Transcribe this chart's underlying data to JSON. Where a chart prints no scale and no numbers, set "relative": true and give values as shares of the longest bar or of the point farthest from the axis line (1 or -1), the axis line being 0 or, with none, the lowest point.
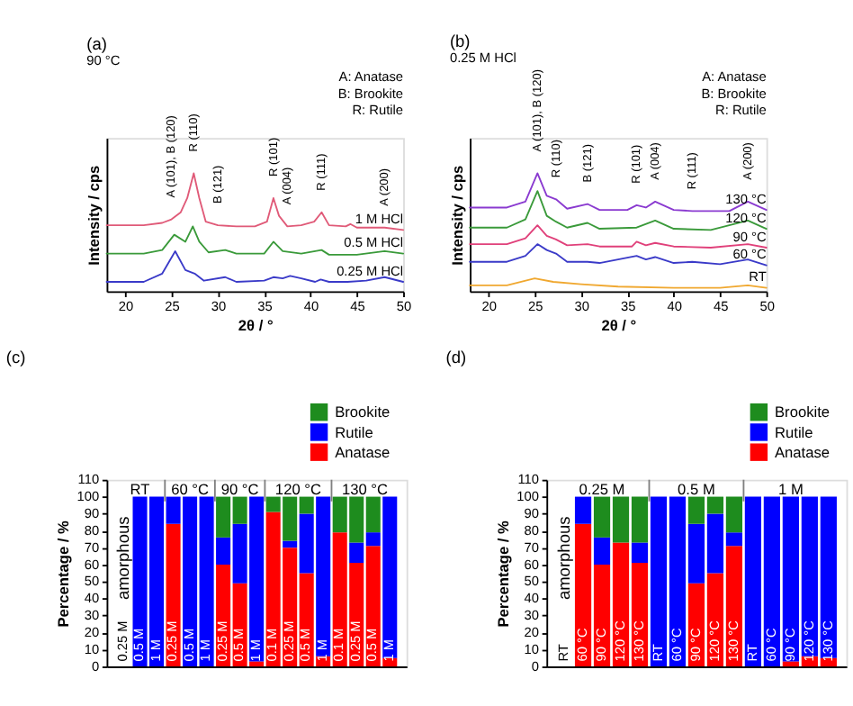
{
  "chart_data": [
    {
      "type": "line",
      "title": "(a)",
      "subtitle": "90 °C",
      "xlabel": "2θ / °",
      "ylabel": "Intensity / cps",
      "relative": true,
      "xlim": [
        18,
        50
      ],
      "xticks": [
        20,
        25,
        30,
        35,
        40,
        45,
        50
      ],
      "tick_labels": "x",
      "series": [
        {
          "name": "1 M HCl",
          "color": "#e05a78",
          "x": [
            18,
            20,
            22,
            24,
            25,
            26,
            26.7,
            27.4,
            28,
            28.7,
            30,
            32,
            34,
            35.3,
            36,
            36.6,
            37.5,
            39,
            40.4,
            41.2,
            42,
            43.8,
            44.3,
            45,
            48,
            50
          ],
          "values": [
            0.56,
            0.56,
            0.56,
            0.58,
            0.61,
            0.67,
            0.79,
            1,
            0.79,
            0.59,
            0.56,
            0.55,
            0.55,
            0.59,
            0.79,
            0.64,
            0.55,
            0.56,
            0.59,
            0.67,
            0.56,
            0.55,
            0.57,
            0.54,
            0.54,
            0.52
          ]
        },
        {
          "name": "0.5 M HCl",
          "color": "#3a9a3a",
          "x": [
            18,
            22,
            24,
            25.3,
            26.5,
            27.3,
            28,
            29,
            30.8,
            32,
            35,
            36,
            37,
            39,
            41.2,
            42,
            45,
            48,
            50
          ],
          "values": [
            0.32,
            0.32,
            0.35,
            0.48,
            0.42,
            0.55,
            0.42,
            0.33,
            0.35,
            0.32,
            0.32,
            0.42,
            0.34,
            0.32,
            0.35,
            0.31,
            0.31,
            0.34,
            0.32
          ]
        },
        {
          "name": "0.25 M HCl",
          "color": "#3a3ac8",
          "x": [
            18,
            20,
            22,
            24,
            25.4,
            26.5,
            27.5,
            28.5,
            30.8,
            32,
            35,
            36,
            37,
            37.8,
            39,
            40.5,
            41.1,
            42,
            44,
            46,
            48,
            50
          ],
          "values": [
            0.08,
            0.08,
            0.08,
            0.15,
            0.34,
            0.18,
            0.15,
            0.09,
            0.12,
            0.08,
            0.09,
            0.12,
            0.11,
            0.13,
            0.11,
            0.08,
            0.1,
            0.08,
            0.08,
            0.09,
            0.12,
            0.08
          ]
        }
      ],
      "annotations": [
        {
          "text": "A (101), B (120)",
          "x": 25,
          "y": 0.61
        },
        {
          "text": "R (110)",
          "x": 27.4,
          "y": 1
        },
        {
          "text": "B (121)",
          "x": 30,
          "y": 0.56
        },
        {
          "text": "R (101)",
          "x": 36,
          "y": 0.79
        },
        {
          "text": "A (004)",
          "x": 37.5,
          "y": 0.55
        },
        {
          "text": "R (111)",
          "x": 41.2,
          "y": 0.67
        },
        {
          "text": "A (200)",
          "x": 48,
          "y": 0.54
        },
        "A: Anatase",
        "B: Brookite",
        "R: Rutile"
      ]
    },
    {
      "type": "line",
      "title": "(b)",
      "subtitle": "0.25 M HCl",
      "xlabel": "2θ / °",
      "ylabel": "Intensity / cps",
      "relative": true,
      "xlim": [
        18,
        50
      ],
      "xticks": [
        20,
        25,
        30,
        35,
        40,
        45,
        50
      ],
      "tick_labels": "x",
      "series": [
        {
          "name": "130 °C",
          "color": "#8a3ad0",
          "x": [
            18,
            22,
            24,
            25.3,
            26.3,
            27.3,
            28.5,
            30.7,
            32,
            35,
            36,
            37,
            38,
            40,
            42,
            46,
            48,
            50
          ],
          "values": [
            0.71,
            0.71,
            0.76,
            1,
            0.81,
            0.78,
            0.7,
            0.74,
            0.69,
            0.69,
            0.73,
            0.71,
            0.76,
            0.69,
            0.68,
            0.68,
            0.76,
            0.69
          ]
        },
        {
          "name": "120 °C",
          "color": "#3a9a3a",
          "x": [
            18,
            22,
            24,
            25.3,
            26.3,
            27.3,
            28.5,
            30.7,
            32,
            36,
            38,
            40,
            44,
            48,
            50
          ],
          "values": [
            0.54,
            0.54,
            0.61,
            0.85,
            0.64,
            0.59,
            0.54,
            0.58,
            0.53,
            0.54,
            0.6,
            0.53,
            0.52,
            0.6,
            0.53
          ]
        },
        {
          "name": "90 °C",
          "color": "#e0407a",
          "x": [
            18,
            22,
            24,
            25.3,
            26.3,
            27.3,
            28.5,
            30.7,
            32,
            35.5,
            36,
            37,
            38,
            40,
            44,
            48,
            50
          ],
          "values": [
            0.4,
            0.4,
            0.45,
            0.56,
            0.47,
            0.44,
            0.39,
            0.4,
            0.38,
            0.38,
            0.42,
            0.39,
            0.41,
            0.38,
            0.37,
            0.4,
            0.37
          ]
        },
        {
          "name": "60 °C",
          "color": "#3a3ac8",
          "x": [
            18,
            22,
            24,
            25.3,
            26.3,
            27.3,
            28.5,
            30.7,
            32,
            36,
            37,
            38,
            40,
            42,
            45,
            48,
            50
          ],
          "values": [
            0.25,
            0.25,
            0.3,
            0.4,
            0.35,
            0.32,
            0.25,
            0.25,
            0.24,
            0.3,
            0.27,
            0.29,
            0.24,
            0.25,
            0.23,
            0.27,
            0.22
          ]
        },
        {
          "name": "RT",
          "color": "#f0a830",
          "x": [
            18,
            22,
            25,
            27,
            30,
            34,
            40,
            45,
            48,
            50
          ],
          "values": [
            0.05,
            0.05,
            0.11,
            0.08,
            0.06,
            0.04,
            0.03,
            0.03,
            0.05,
            0.03
          ]
        }
      ],
      "annotations": [
        {
          "text": "A (101), B (120)",
          "x": 25.3,
          "y": 1
        },
        {
          "text": "R (110)",
          "x": 27.3,
          "y": 0.78
        },
        {
          "text": "B (121)",
          "x": 30.7,
          "y": 0.74
        },
        {
          "text": "R (101)",
          "x": 36,
          "y": 0.73
        },
        {
          "text": "A (004)",
          "x": 38,
          "y": 0.76
        },
        {
          "text": "R (111)",
          "x": 42,
          "y": 0.68
        },
        {
          "text": "A (200)",
          "x": 48,
          "y": 0.76
        },
        "A: Anatase",
        "B: Brookite",
        "R: Rutile"
      ]
    },
    {
      "type": "bar",
      "title": "(c)",
      "ylabel": "Percentage / %",
      "stacked": true,
      "ylim": [
        0,
        110
      ],
      "yticks": [
        0,
        10,
        20,
        30,
        40,
        50,
        60,
        70,
        80,
        90,
        100,
        110
      ],
      "tick_labels": "y",
      "legend": "top right",
      "categories": [
        "0.25 M",
        "0.5 M",
        "1 M",
        "0.25 M",
        "0.5 M",
        "1 M",
        "0.25 M",
        "0.5 M",
        "1 M",
        "0.1 M",
        "0.25 M",
        "0.5 M",
        "1 M",
        "0.1 M",
        "0.25 M",
        "0.5 M",
        "1 M"
      ],
      "series": [
        {
          "name": "Anatase",
          "color": "#ff0000",
          "values": [
            null,
            0,
            0,
            84,
            0,
            0,
            60,
            49,
            3,
            91,
            70,
            55,
            6,
            79,
            61,
            71,
            5
          ]
        },
        {
          "name": "Rutile",
          "color": "#0000ff",
          "values": [
            null,
            100,
            100,
            16,
            100,
            100,
            16,
            35,
            97,
            0,
            4,
            35,
            94,
            0,
            12,
            8,
            95
          ]
        },
        {
          "name": "Brookite",
          "color": "#1e8c1e",
          "values": [
            null,
            0,
            0,
            0,
            0,
            0,
            24,
            16,
            0,
            9,
            26,
            10,
            0,
            21,
            27,
            21,
            0
          ]
        }
      ],
      "annotations": [
        "RT",
        "60 °C",
        "90 °C",
        "120 °C",
        "130 °C",
        "amorphous"
      ]
    },
    {
      "type": "bar",
      "title": "(d)",
      "ylabel": "Percentage / %",
      "stacked": true,
      "ylim": [
        0,
        110
      ],
      "yticks": [
        0,
        10,
        20,
        30,
        40,
        50,
        60,
        70,
        80,
        90,
        100,
        110
      ],
      "tick_labels": "y",
      "legend": "top right",
      "categories": [
        "RT",
        "60 °C",
        "90 °C",
        "120 °C",
        "130 °C",
        "RT",
        "60 °C",
        "90 °C",
        "120 °C",
        "130 °C",
        "RT",
        "60 °C",
        "90 °C",
        "120 °C",
        "130 °C"
      ],
      "series": [
        {
          "name": "Anatase",
          "color": "#ff0000",
          "values": [
            null,
            84,
            60,
            73,
            61,
            0,
            0,
            49,
            55,
            71,
            0,
            0,
            3,
            6,
            5
          ]
        },
        {
          "name": "Rutile",
          "color": "#0000ff",
          "values": [
            null,
            16,
            16,
            0,
            12,
            100,
            100,
            35,
            35,
            8,
            100,
            100,
            97,
            94,
            95
          ]
        },
        {
          "name": "Brookite",
          "color": "#1e8c1e",
          "values": [
            null,
            0,
            24,
            27,
            27,
            0,
            0,
            16,
            10,
            21,
            0,
            0,
            0,
            0,
            0
          ]
        }
      ],
      "annotations": [
        "0.25 M",
        "0.5 M",
        "1 M",
        "amorphous"
      ]
    }
  ]
}
